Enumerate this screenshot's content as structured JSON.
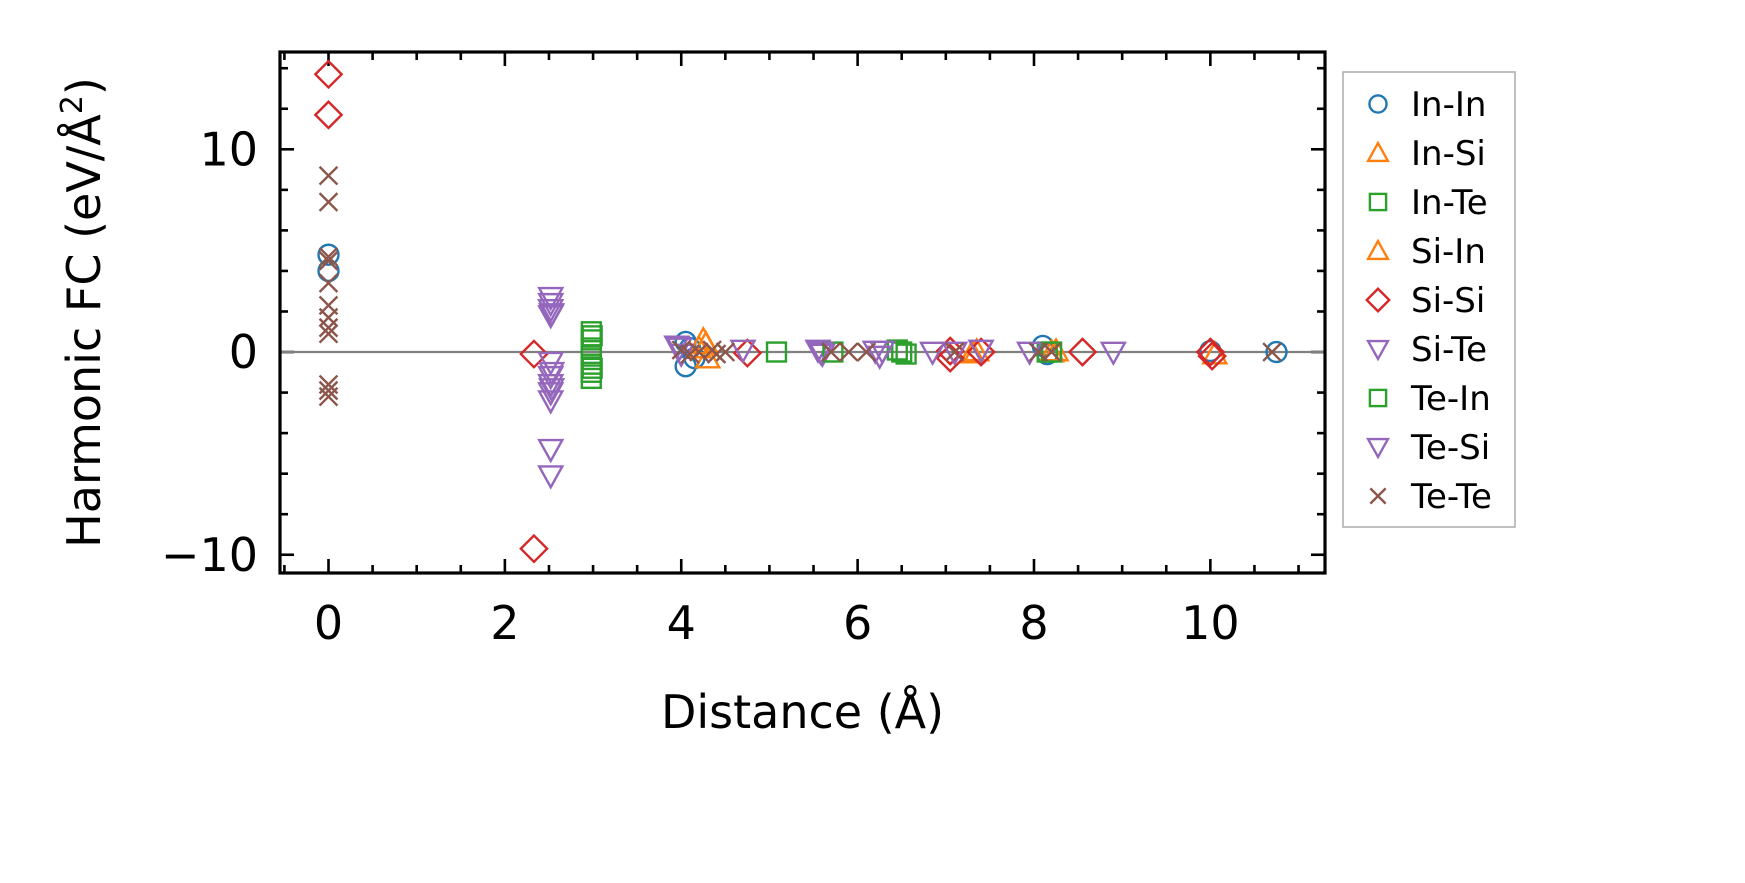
{
  "chart_data": {
    "type": "scatter",
    "xlabel": "Distance (Å)",
    "ylabel": "Harmonic FC (eV/Å²)",
    "ylabel_base": "Harmonic FC (eV/Å",
    "ylabel_sup": "2",
    "ylabel_close": ")",
    "xlim": [
      -0.55,
      11.3
    ],
    "ylim": [
      -10.9,
      14.8
    ],
    "xticks": [
      0,
      2,
      4,
      6,
      8,
      10
    ],
    "xtick_labels": [
      "0",
      "2",
      "4",
      "6",
      "8",
      "10"
    ],
    "yticks": [
      -10,
      0,
      10
    ],
    "ytick_labels": [
      "−10",
      "0",
      "10"
    ],
    "x_minor_step": 0.5,
    "y_minor_step": 2,
    "zero_line": true,
    "legend_position": "outside-right",
    "series": [
      {
        "name": "In-In",
        "marker": "circle",
        "color": "#1f77b4",
        "points": [
          [
            0,
            4.8
          ],
          [
            0,
            4.0
          ],
          [
            4.05,
            0.5
          ],
          [
            4.05,
            -0.7
          ],
          [
            4.1,
            0.2
          ],
          [
            4.15,
            -0.3
          ],
          [
            8.1,
            0.3
          ],
          [
            8.15,
            -0.1
          ],
          [
            10.0,
            0.05
          ],
          [
            10.75,
            0.0
          ]
        ]
      },
      {
        "name": "In-Si",
        "marker": "triangle-up",
        "color": "#ff7f0e",
        "points": [
          [
            4.25,
            0.6
          ],
          [
            4.3,
            -0.3
          ],
          [
            4.2,
            0.2
          ],
          [
            7.35,
            0.05
          ],
          [
            8.2,
            0.0
          ],
          [
            10.05,
            -0.1
          ]
        ]
      },
      {
        "name": "In-Te",
        "marker": "square",
        "color": "#2ca02c",
        "points": [
          [
            2.98,
            1.0
          ],
          [
            2.98,
            0.6
          ],
          [
            2.98,
            0.2
          ],
          [
            2.98,
            -0.2
          ],
          [
            2.98,
            -0.6
          ],
          [
            2.98,
            -1.0
          ],
          [
            2.98,
            -1.3
          ],
          [
            5.08,
            0.0
          ],
          [
            6.45,
            0.1
          ],
          [
            6.55,
            -0.1
          ],
          [
            8.15,
            0.0
          ]
        ]
      },
      {
        "name": "Si-In",
        "marker": "triangle-up",
        "color": "#ff7f0e",
        "points": [
          [
            4.28,
            0.4
          ],
          [
            7.3,
            -0.05
          ],
          [
            8.25,
            0.05
          ]
        ]
      },
      {
        "name": "Si-Si",
        "marker": "diamond",
        "color": "#d62728",
        "points": [
          [
            0,
            13.7
          ],
          [
            0,
            11.7
          ],
          [
            2.33,
            -0.1
          ],
          [
            2.33,
            -9.7
          ],
          [
            4.75,
            -0.05
          ],
          [
            7.05,
            0.05
          ],
          [
            7.05,
            -0.3
          ],
          [
            7.4,
            0.0
          ],
          [
            8.55,
            0.0
          ],
          [
            10.0,
            0.0
          ],
          [
            10.02,
            -0.2
          ]
        ]
      },
      {
        "name": "Si-Te",
        "marker": "triangle-down",
        "color": "#9467bd",
        "points": [
          [
            2.52,
            2.7
          ],
          [
            2.52,
            2.4
          ],
          [
            2.52,
            2.1
          ],
          [
            2.52,
            1.8
          ],
          [
            2.52,
            -0.5
          ],
          [
            2.52,
            -1.2
          ],
          [
            2.52,
            -1.6
          ],
          [
            2.52,
            -2.0
          ],
          [
            2.52,
            -2.4
          ],
          [
            2.52,
            -4.8
          ],
          [
            2.52,
            -6.1
          ],
          [
            3.95,
            0.3
          ],
          [
            4.0,
            -0.1
          ],
          [
            4.7,
            0.1
          ],
          [
            5.55,
            0.1
          ],
          [
            5.6,
            -0.1
          ],
          [
            6.2,
            0.05
          ],
          [
            6.25,
            -0.2
          ],
          [
            6.85,
            0.0
          ],
          [
            7.4,
            0.1
          ],
          [
            7.95,
            0.0
          ],
          [
            8.9,
            0.0
          ]
        ]
      },
      {
        "name": "Te-In",
        "marker": "square",
        "color": "#2ca02c",
        "points": [
          [
            2.99,
            0.8
          ],
          [
            2.99,
            -0.8
          ],
          [
            5.72,
            0.0
          ],
          [
            6.5,
            0.0
          ],
          [
            8.2,
            0.0
          ]
        ]
      },
      {
        "name": "Te-Si",
        "marker": "triangle-down",
        "color": "#9467bd",
        "points": [
          [
            2.53,
            1.9
          ],
          [
            2.53,
            -1.0
          ],
          [
            2.53,
            -1.8
          ],
          [
            3.98,
            0.2
          ],
          [
            5.58,
            0.0
          ],
          [
            6.28,
            0.05
          ],
          [
            7.1,
            0.0
          ]
        ]
      },
      {
        "name": "Te-Te",
        "marker": "x",
        "color": "#8c564b",
        "points": [
          [
            0,
            8.7
          ],
          [
            0,
            7.4
          ],
          [
            0,
            4.7
          ],
          [
            0,
            4.5
          ],
          [
            0,
            3.4
          ],
          [
            0,
            2.3
          ],
          [
            0,
            1.7
          ],
          [
            0,
            1.2
          ],
          [
            0,
            0.9
          ],
          [
            0,
            -1.6
          ],
          [
            0,
            -1.9
          ],
          [
            0,
            -2.2
          ],
          [
            4.0,
            0.1
          ],
          [
            4.1,
            -0.1
          ],
          [
            4.2,
            0.0
          ],
          [
            4.35,
            0.1
          ],
          [
            4.4,
            -0.1
          ],
          [
            4.5,
            0.0
          ],
          [
            5.7,
            0.0
          ],
          [
            5.9,
            0.0
          ],
          [
            6.1,
            0.0
          ],
          [
            7.1,
            0.0
          ],
          [
            8.05,
            0.0
          ],
          [
            8.2,
            0.0
          ],
          [
            10.7,
            0.0
          ]
        ]
      }
    ]
  }
}
